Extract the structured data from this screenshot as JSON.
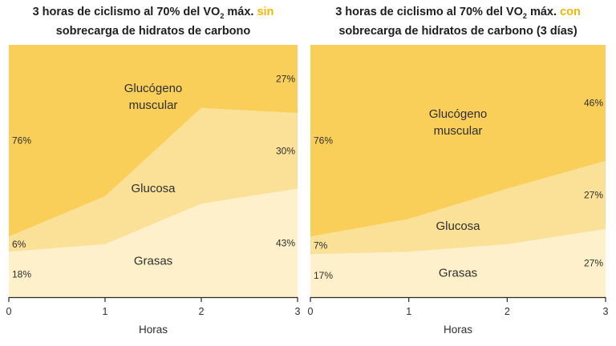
{
  "colors": {
    "glycogen": "#f9cf5a",
    "glucose": "#fbe197",
    "fat": "#fdf0ca",
    "highlight": "#f2b705",
    "axis": "#2a2a2a"
  },
  "chart_data": [
    {
      "type": "area",
      "title": {
        "pre": "3 horas de ciclismo al 70% del VO",
        "sub": "2",
        "mid": " máx. ",
        "hl": "sin",
        "line2": "sobrecarga de hidratos de carbono"
      },
      "xlabel": "Horas",
      "x": [
        0,
        1,
        2,
        3
      ],
      "xticks": [
        "0",
        "1",
        "2",
        "3"
      ],
      "ylim": [
        0,
        100
      ],
      "series": [
        {
          "key": "fat",
          "name": "Grasas",
          "values": [
            18,
            21,
            37,
            43
          ],
          "start_label": "18%",
          "end_label": "43%"
        },
        {
          "key": "glucose",
          "name": "Glucosa",
          "values": [
            6,
            19,
            38,
            30
          ],
          "start_label": "6%",
          "end_label": "30%"
        },
        {
          "key": "glycogen",
          "name_line1": "Glucógeno",
          "name_line2": "muscular",
          "values": [
            76,
            60,
            25,
            27
          ],
          "start_label": "76%",
          "end_label": "27%"
        }
      ]
    },
    {
      "type": "area",
      "title": {
        "pre": "3 horas de ciclismo al 70% del VO",
        "sub": "2",
        "mid": " máx. ",
        "hl": "con",
        "line2": "sobrecarga de hidratos de carbono (3 días)"
      },
      "xlabel": "Horas",
      "x": [
        0,
        1,
        2,
        3
      ],
      "xticks": [
        "0",
        "1",
        "2",
        "3"
      ],
      "ylim": [
        0,
        100
      ],
      "series": [
        {
          "key": "fat",
          "name": "Grasas",
          "values": [
            17,
            18,
            21,
            27
          ],
          "start_label": "17%",
          "end_label": "27%"
        },
        {
          "key": "glucose",
          "name": "Glucosa",
          "values": [
            7,
            13,
            22,
            27
          ],
          "start_label": "7%",
          "end_label": "27%"
        },
        {
          "key": "glycogen",
          "name_line1": "Glucógeno",
          "name_line2": "muscular",
          "values": [
            76,
            69,
            57,
            46
          ],
          "start_label": "76%",
          "end_label": "46%"
        }
      ]
    }
  ]
}
